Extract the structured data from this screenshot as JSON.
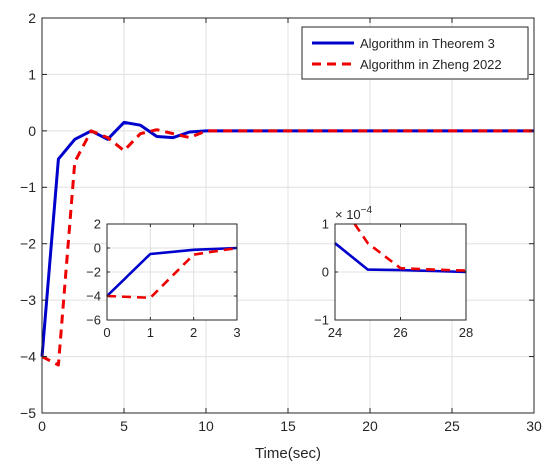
{
  "colors": {
    "theorem3": "#0000cc",
    "zheng2022": "#ee0000",
    "axis": "#262626",
    "grid": "#e0e0e0"
  },
  "chart_data": [
    {
      "id": "main",
      "type": "line",
      "xlabel": "Time(sec)",
      "ylabel": "",
      "xlim": [
        0,
        30
      ],
      "ylim": [
        -5,
        2
      ],
      "xticks": [
        0,
        5,
        10,
        15,
        20,
        25,
        30
      ],
      "yticks": [
        -5,
        -4,
        -3,
        -2,
        -1,
        0,
        1,
        2
      ],
      "grid": true,
      "legend_position": "top-right",
      "series": [
        {
          "name": "Algorithm in Theorem 3",
          "color": "#0000cc",
          "style": "solid",
          "x": [
            0,
            1,
            2,
            3,
            4,
            5,
            6,
            7,
            8,
            9,
            10,
            11,
            12,
            13,
            14,
            15,
            20,
            25,
            30
          ],
          "y": [
            -4,
            -0.5,
            -0.15,
            0,
            -0.15,
            0.15,
            0.1,
            -0.1,
            -0.12,
            -0.02,
            0,
            0,
            0,
            0,
            0,
            0,
            0,
            0,
            0
          ]
        },
        {
          "name": "Algorithm in Zheng 2022",
          "color": "#ee0000",
          "style": "dashed",
          "x": [
            0,
            1,
            2,
            3,
            4,
            5,
            6,
            7,
            8,
            9,
            10,
            11,
            12,
            15,
            20,
            25,
            30
          ],
          "y": [
            -4,
            -4.15,
            -0.55,
            0,
            -0.12,
            -0.35,
            -0.05,
            0.02,
            -0.05,
            -0.12,
            0,
            0,
            0,
            0,
            0,
            0,
            0
          ]
        }
      ]
    },
    {
      "id": "inset1",
      "type": "line",
      "xlim": [
        0,
        3
      ],
      "ylim": [
        -6,
        2
      ],
      "xticks": [
        0,
        1,
        2,
        3
      ],
      "yticks": [
        -6,
        -4,
        -2,
        0,
        2
      ],
      "grid": true,
      "series": [
        {
          "name": "Algorithm in Theorem 3",
          "color": "#0000cc",
          "style": "solid",
          "x": [
            0,
            1,
            2,
            3
          ],
          "y": [
            -4,
            -0.5,
            -0.15,
            0
          ]
        },
        {
          "name": "Algorithm in Zheng 2022",
          "color": "#ee0000",
          "style": "dashed",
          "x": [
            0,
            1,
            2,
            3
          ],
          "y": [
            -4,
            -4.15,
            -0.55,
            0
          ]
        }
      ]
    },
    {
      "id": "inset2",
      "type": "line",
      "xlim": [
        24,
        28
      ],
      "ylim": [
        -1,
        1
      ],
      "xticks": [
        24,
        26,
        28
      ],
      "yticks": [
        -1,
        0,
        1
      ],
      "exponent_label": "× 10^-4",
      "grid": true,
      "series": [
        {
          "name": "Algorithm in Theorem 3",
          "color": "#0000cc",
          "style": "solid",
          "x": [
            24,
            25,
            26,
            27,
            28
          ],
          "y": [
            0.6,
            0.05,
            0.04,
            0.02,
            0.0
          ]
        },
        {
          "name": "Algorithm in Zheng 2022",
          "color": "#ee0000",
          "style": "dashed",
          "x": [
            24.6,
            25,
            26,
            27,
            28
          ],
          "y": [
            1.0,
            0.6,
            0.08,
            0.05,
            0.03
          ]
        }
      ]
    }
  ]
}
